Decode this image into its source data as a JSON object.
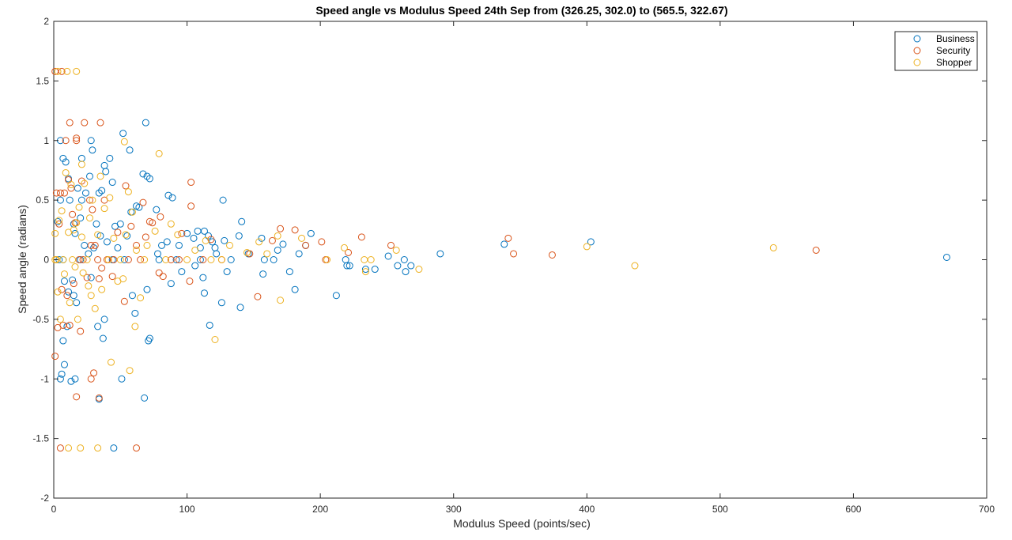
{
  "chart_data": {
    "type": "scatter",
    "title": "Speed angle vs Modulus Speed 24th Sep from (326.25, 302.0) to (565.5, 322.67)",
    "xlabel": "Modulus Speed (points/sec)",
    "ylabel": "Speed angle (radians)",
    "xlim": [
      0,
      700
    ],
    "ylim": [
      -2,
      2
    ],
    "xticks": [
      0,
      100,
      200,
      300,
      400,
      500,
      600,
      700
    ],
    "xtick_labels": [
      "0",
      "100",
      "200",
      "300",
      "400",
      "500",
      "600",
      "700"
    ],
    "yticks": [
      -2,
      -1.5,
      -1,
      -0.5,
      0,
      0.5,
      1,
      1.5,
      2
    ],
    "ytick_labels": [
      "-2",
      "-1.5",
      "-1",
      "-0.5",
      "0",
      "0.5",
      "1",
      "1.5",
      "2"
    ],
    "grid": false,
    "legend_position": "top-right",
    "marker": "open-circle",
    "series": [
      {
        "name": "Business",
        "color": "#0072BD",
        "points": [
          [
            670,
            0.02
          ],
          [
            403,
            0.15
          ],
          [
            338,
            0.13
          ],
          [
            290,
            0.05
          ],
          [
            268,
            -0.05
          ],
          [
            264,
            -0.1
          ],
          [
            263,
            0.0
          ],
          [
            258,
            -0.05
          ],
          [
            251,
            0.03
          ],
          [
            241,
            -0.08
          ],
          [
            234,
            -0.08
          ],
          [
            222,
            -0.05
          ],
          [
            220,
            -0.05
          ],
          [
            219,
            0.0
          ],
          [
            212,
            -0.3
          ],
          [
            193,
            0.22
          ],
          [
            189,
            0.12
          ],
          [
            184,
            0.05
          ],
          [
            181,
            -0.25
          ],
          [
            177,
            -0.1
          ],
          [
            172,
            0.13
          ],
          [
            168,
            0.08
          ],
          [
            165,
            0.0
          ],
          [
            158,
            0.0
          ],
          [
            157,
            -0.12
          ],
          [
            156,
            0.18
          ],
          [
            146,
            0.05
          ],
          [
            141,
            0.32
          ],
          [
            140,
            -0.4
          ],
          [
            139,
            0.2
          ],
          [
            133,
            0.0
          ],
          [
            130,
            -0.1
          ],
          [
            128,
            0.16
          ],
          [
            127,
            0.5
          ],
          [
            126,
            -0.36
          ],
          [
            122,
            0.05
          ],
          [
            121,
            0.1
          ],
          [
            119,
            0.15
          ],
          [
            117,
            -0.55
          ],
          [
            116,
            0.2
          ],
          [
            113,
            0.24
          ],
          [
            113,
            -0.28
          ],
          [
            112,
            -0.15
          ],
          [
            110,
            0.1
          ],
          [
            110,
            0.0
          ],
          [
            108,
            0.24
          ],
          [
            106,
            -0.05
          ],
          [
            105,
            0.18
          ],
          [
            100,
            0.22
          ],
          [
            96,
            -0.1
          ],
          [
            94,
            0.12
          ],
          [
            92,
            0.0
          ],
          [
            89,
            0.52
          ],
          [
            88,
            -0.2
          ],
          [
            86,
            0.54
          ],
          [
            85,
            0.15
          ],
          [
            81,
            0.12
          ],
          [
            79,
            0.0
          ],
          [
            78,
            0.05
          ],
          [
            77,
            0.42
          ],
          [
            72,
            -0.66
          ],
          [
            71,
            -0.68
          ],
          [
            72,
            0.68
          ],
          [
            70,
            0.7
          ],
          [
            70,
            -0.25
          ],
          [
            69,
            1.15
          ],
          [
            68,
            -1.16
          ],
          [
            67,
            0.72
          ],
          [
            64,
            0.44
          ],
          [
            62,
            0.45
          ],
          [
            61,
            -0.45
          ],
          [
            59,
            -0.3
          ],
          [
            58,
            0.4
          ],
          [
            57,
            0.92
          ],
          [
            55,
            0.2
          ],
          [
            53,
            0.0
          ],
          [
            52,
            1.06
          ],
          [
            51,
            -1.0
          ],
          [
            50,
            0.3
          ],
          [
            48,
            0.1
          ],
          [
            46,
            0.28
          ],
          [
            45,
            -1.58
          ],
          [
            44,
            0.65
          ],
          [
            44,
            0.0
          ],
          [
            42,
            0.85
          ],
          [
            40,
            0.15
          ],
          [
            39,
            0.74
          ],
          [
            38,
            -0.5
          ],
          [
            38,
            0.79
          ],
          [
            37,
            -0.66
          ],
          [
            36,
            0.58
          ],
          [
            35,
            0.2
          ],
          [
            34,
            0.56
          ],
          [
            34,
            -1.17
          ],
          [
            33,
            -0.56
          ],
          [
            32,
            0.3
          ],
          [
            30,
            0.1
          ],
          [
            29,
            0.92
          ],
          [
            28,
            1.0
          ],
          [
            28,
            -0.15
          ],
          [
            27,
            0.7
          ],
          [
            26,
            0.05
          ],
          [
            24,
            0.56
          ],
          [
            23,
            0.12
          ],
          [
            21,
            0.85
          ],
          [
            21,
            0.5
          ],
          [
            20,
            0.35
          ],
          [
            20,
            0.0
          ],
          [
            18,
            0.6
          ],
          [
            17,
            -0.36
          ],
          [
            16,
            -1.0
          ],
          [
            16,
            0.22
          ],
          [
            15,
            0.3
          ],
          [
            15,
            -0.3
          ],
          [
            14,
            -0.17
          ],
          [
            13,
            -1.02
          ],
          [
            12,
            0.5
          ],
          [
            11,
            0.68
          ],
          [
            11,
            -0.27
          ],
          [
            10,
            -0.56
          ],
          [
            9,
            0.82
          ],
          [
            8,
            -0.18
          ],
          [
            8,
            -0.88
          ],
          [
            7,
            0.85
          ],
          [
            7,
            -0.68
          ],
          [
            7,
            0.0
          ],
          [
            6,
            -0.96
          ],
          [
            5,
            -1.0
          ],
          [
            5,
            0.5
          ],
          [
            5,
            1.0
          ],
          [
            4,
            0.0
          ],
          [
            3,
            0.32
          ],
          [
            2,
            0.0
          ]
        ]
      },
      {
        "name": "Security",
        "color": "#D95319",
        "points": [
          [
            572,
            0.08
          ],
          [
            374,
            0.04
          ],
          [
            345,
            0.05
          ],
          [
            341,
            0.18
          ],
          [
            253,
            0.12
          ],
          [
            231,
            0.19
          ],
          [
            221,
            0.06
          ],
          [
            204,
            0.0
          ],
          [
            201,
            0.15
          ],
          [
            189,
            0.12
          ],
          [
            181,
            0.25
          ],
          [
            170,
            0.26
          ],
          [
            164,
            0.16
          ],
          [
            153,
            -0.31
          ],
          [
            147,
            0.05
          ],
          [
            126,
            0.0
          ],
          [
            118,
            0.17
          ],
          [
            112,
            0.0
          ],
          [
            103,
            0.45
          ],
          [
            103,
            0.65
          ],
          [
            102,
            -0.18
          ],
          [
            96,
            0.22
          ],
          [
            94,
            0.0
          ],
          [
            88,
            0.0
          ],
          [
            82,
            -0.14
          ],
          [
            80,
            0.36
          ],
          [
            79,
            -0.11
          ],
          [
            74,
            0.31
          ],
          [
            72,
            0.32
          ],
          [
            69,
            0.19
          ],
          [
            67,
            0.48
          ],
          [
            65,
            0.0
          ],
          [
            62,
            -1.58
          ],
          [
            62,
            0.12
          ],
          [
            58,
            0.28
          ],
          [
            56,
            0.0
          ],
          [
            54,
            0.62
          ],
          [
            53,
            -0.35
          ],
          [
            48,
            0.23
          ],
          [
            45,
            0.0
          ],
          [
            44,
            -0.14
          ],
          [
            40,
            0.0
          ],
          [
            38,
            0.5
          ],
          [
            36,
            -0.07
          ],
          [
            35,
            1.15
          ],
          [
            34,
            -1.16
          ],
          [
            34,
            -0.16
          ],
          [
            33,
            0.0
          ],
          [
            31,
            0.12
          ],
          [
            30,
            -0.95
          ],
          [
            29,
            0.42
          ],
          [
            28,
            -1.0
          ],
          [
            28,
            0.12
          ],
          [
            27,
            0.5
          ],
          [
            25,
            -0.15
          ],
          [
            23,
            1.15
          ],
          [
            22,
            0.0
          ],
          [
            21,
            0.66
          ],
          [
            20,
            -0.6
          ],
          [
            19,
            0.0
          ],
          [
            17,
            1.0
          ],
          [
            17,
            1.02
          ],
          [
            17,
            -1.15
          ],
          [
            16,
            0.31
          ],
          [
            15,
            -0.2
          ],
          [
            14,
            0.38
          ],
          [
            13,
            0.6
          ],
          [
            12,
            1.15
          ],
          [
            12,
            -0.55
          ],
          [
            11,
            0.67
          ],
          [
            10,
            -0.3
          ],
          [
            9,
            1.0
          ],
          [
            8,
            0.56
          ],
          [
            7,
            -0.55
          ],
          [
            6,
            -0.25
          ],
          [
            5,
            -1.58
          ],
          [
            5,
            0.56
          ],
          [
            4,
            0.3
          ],
          [
            3,
            -0.57
          ],
          [
            2,
            0.0
          ],
          [
            1,
            -0.81
          ],
          [
            1,
            1.58
          ],
          [
            6,
            1.58
          ],
          [
            2,
            0.56
          ]
        ]
      },
      {
        "name": "Shopper",
        "color": "#EDB120",
        "points": [
          [
            540,
            0.1
          ],
          [
            436,
            -0.05
          ],
          [
            400,
            0.11
          ],
          [
            274,
            -0.08
          ],
          [
            257,
            0.08
          ],
          [
            238,
            0.0
          ],
          [
            234,
            -0.1
          ],
          [
            233,
            0.0
          ],
          [
            218,
            0.1
          ],
          [
            205,
            0.0
          ],
          [
            186,
            0.18
          ],
          [
            170,
            -0.34
          ],
          [
            168,
            0.2
          ],
          [
            160,
            0.05
          ],
          [
            154,
            0.15
          ],
          [
            145,
            0.06
          ],
          [
            132,
            0.12
          ],
          [
            126,
            0.0
          ],
          [
            121,
            -0.67
          ],
          [
            118,
            0.0
          ],
          [
            114,
            0.16
          ],
          [
            106,
            0.08
          ],
          [
            100,
            0.0
          ],
          [
            93,
            0.21
          ],
          [
            88,
            0.3
          ],
          [
            84,
            0.0
          ],
          [
            79,
            0.89
          ],
          [
            76,
            0.24
          ],
          [
            70,
            0.12
          ],
          [
            68,
            0.0
          ],
          [
            65,
            -0.32
          ],
          [
            62,
            0.08
          ],
          [
            61,
            -0.56
          ],
          [
            59,
            0.4
          ],
          [
            57,
            -0.93
          ],
          [
            56,
            0.57
          ],
          [
            54,
            0.21
          ],
          [
            53,
            0.99
          ],
          [
            52,
            -0.16
          ],
          [
            50,
            0.0
          ],
          [
            48,
            -0.18
          ],
          [
            45,
            0.18
          ],
          [
            43,
            -0.86
          ],
          [
            42,
            0.52
          ],
          [
            41,
            0.0
          ],
          [
            38,
            0.43
          ],
          [
            36,
            -0.25
          ],
          [
            35,
            0.7
          ],
          [
            33,
            0.21
          ],
          [
            33,
            -1.58
          ],
          [
            31,
            -0.41
          ],
          [
            29,
            0.5
          ],
          [
            28,
            -0.3
          ],
          [
            27,
            0.35
          ],
          [
            26,
            -0.22
          ],
          [
            25,
            0.0
          ],
          [
            23,
            0.64
          ],
          [
            22,
            -0.11
          ],
          [
            21,
            0.8
          ],
          [
            21,
            0.19
          ],
          [
            20,
            -1.58
          ],
          [
            19,
            0.44
          ],
          [
            18,
            -0.5
          ],
          [
            17,
            0.31
          ],
          [
            17,
            1.58
          ],
          [
            16,
            -0.06
          ],
          [
            15,
            0.25
          ],
          [
            14,
            0.0
          ],
          [
            13,
            0.63
          ],
          [
            12,
            -0.36
          ],
          [
            11,
            -1.58
          ],
          [
            11,
            0.23
          ],
          [
            10,
            1.58
          ],
          [
            9,
            0.73
          ],
          [
            8,
            -0.12
          ],
          [
            7,
            0.0
          ],
          [
            6,
            0.41
          ],
          [
            5,
            -0.5
          ],
          [
            4,
            0.33
          ],
          [
            3,
            -0.27
          ],
          [
            3,
            1.58
          ],
          [
            2,
            0.0
          ],
          [
            1,
            0.22
          ],
          [
            1,
            0.0
          ]
        ]
      }
    ]
  }
}
